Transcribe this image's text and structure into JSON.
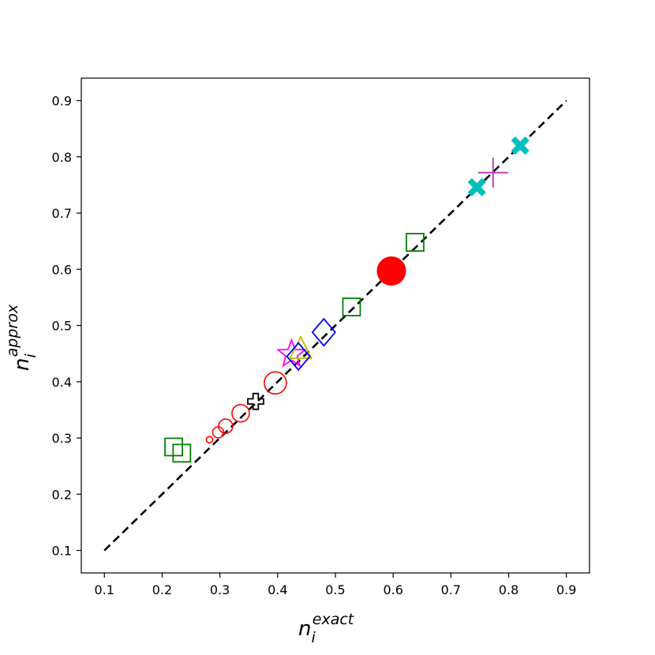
{
  "chart_data": {
    "type": "scatter",
    "title": "",
    "xlabel": {
      "base": "n",
      "sub": "i",
      "sup": "exact"
    },
    "ylabel": {
      "base": "n",
      "sub": "i",
      "sup": "approx"
    },
    "xlim": [
      0.06,
      0.94
    ],
    "ylim": [
      0.06,
      0.94
    ],
    "xticks": [
      "0.1",
      "0.2",
      "0.3",
      "0.4",
      "0.5",
      "0.6",
      "0.7",
      "0.8",
      "0.9"
    ],
    "yticks": [
      "0.1",
      "0.2",
      "0.3",
      "0.4",
      "0.5",
      "0.6",
      "0.7",
      "0.8",
      "0.9"
    ],
    "grid": false,
    "reference_line": {
      "style": "dashed",
      "color": "#000000",
      "from": [
        0.1,
        0.1
      ],
      "to": [
        0.9,
        0.9
      ]
    },
    "points": [
      {
        "marker": "circle-open",
        "color": "#ff0000",
        "size": 4,
        "x": 0.282,
        "y": 0.297
      },
      {
        "marker": "circle-open",
        "color": "#ff0000",
        "size": 7,
        "x": 0.297,
        "y": 0.31
      },
      {
        "marker": "circle-open",
        "color": "#ff0000",
        "size": 9,
        "x": 0.31,
        "y": 0.321
      },
      {
        "marker": "circle-open",
        "color": "#ff0000",
        "size": 11,
        "x": 0.336,
        "y": 0.344
      },
      {
        "marker": "circle-open",
        "color": "#ff0000",
        "size": 14,
        "x": 0.396,
        "y": 0.398
      },
      {
        "marker": "circle-filled",
        "color": "#ff0000",
        "size": 18,
        "x": 0.597,
        "y": 0.597
      },
      {
        "marker": "square-open",
        "color": "#008000",
        "size": 22,
        "x": 0.22,
        "y": 0.284
      },
      {
        "marker": "square-open",
        "color": "#008000",
        "size": 22,
        "x": 0.234,
        "y": 0.273
      },
      {
        "marker": "square-open",
        "color": "#008000",
        "size": 22,
        "x": 0.528,
        "y": 0.533
      },
      {
        "marker": "square-open",
        "color": "#008000",
        "size": 22,
        "x": 0.638,
        "y": 0.648
      },
      {
        "marker": "plus-open",
        "color": "#000000",
        "size": 20,
        "x": 0.362,
        "y": 0.365
      },
      {
        "marker": "star-open",
        "color": "#ff00ff",
        "size": 18,
        "x": 0.424,
        "y": 0.449
      },
      {
        "marker": "triangle-open",
        "color": "#bfbf00",
        "size": 18,
        "x": 0.44,
        "y": 0.457
      },
      {
        "marker": "diamond-open",
        "color": "#0000ff",
        "size": 17,
        "x": 0.436,
        "y": 0.445
      },
      {
        "marker": "diamond-open",
        "color": "#0000ff",
        "size": 17,
        "x": 0.48,
        "y": 0.488
      },
      {
        "marker": "x-filled",
        "color": "#00bfbf",
        "size": 12,
        "x": 0.745,
        "y": 0.746
      },
      {
        "marker": "x-filled",
        "color": "#00bfbf",
        "size": 12,
        "x": 0.82,
        "y": 0.82
      },
      {
        "marker": "plus-thin",
        "color": "#bf40bf",
        "size": 19,
        "x": 0.773,
        "y": 0.772
      }
    ]
  }
}
